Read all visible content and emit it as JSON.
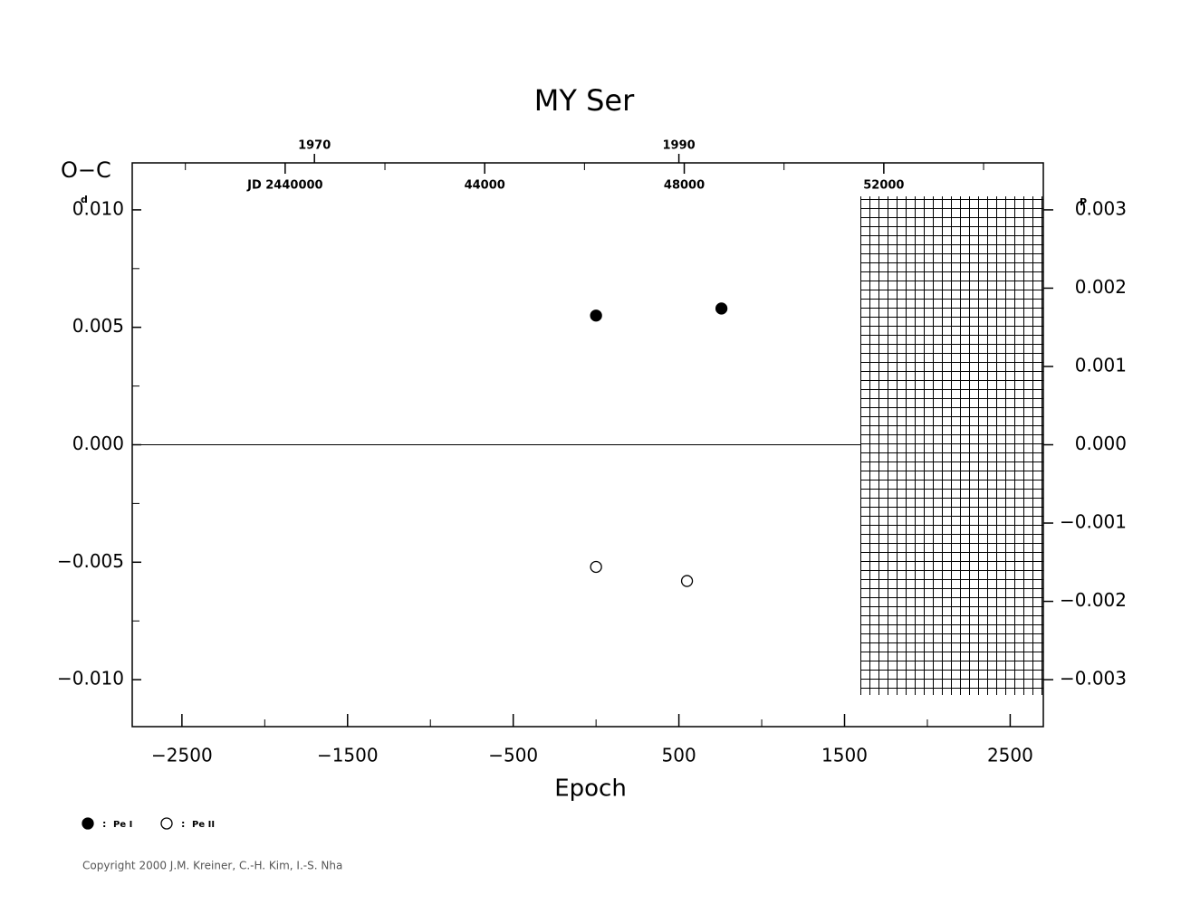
{
  "chart_data": {
    "type": "scatter",
    "title": "MY Ser",
    "y_label": "O−C",
    "y_unit": "d",
    "y2_unit": "P",
    "x_label": "Epoch",
    "xlim": [
      -2800,
      2700
    ],
    "xticks": [
      {
        "value": -2500,
        "label": "−2500"
      },
      {
        "value": -1500,
        "label": "−1500"
      },
      {
        "value": -500,
        "label": "−500"
      },
      500,
      1500,
      2500
    ],
    "ylim": [
      -0.012,
      0.012
    ],
    "yticks": [
      {
        "value": 0.01,
        "label": "0.010"
      },
      {
        "value": 0.005,
        "label": "0.005"
      },
      {
        "value": 0,
        "label": "0.000"
      },
      {
        "value": -0.005,
        "label": "−0.005"
      },
      {
        "value": -0.01,
        "label": "−0.010"
      }
    ],
    "y2lim": [
      -0.0036,
      0.0036
    ],
    "y2ticks": [
      {
        "value": 0.003,
        "label": "0.003"
      },
      {
        "value": 0.002,
        "label": "0.002"
      },
      {
        "value": 0.001,
        "label": "0.001"
      },
      {
        "value": 0,
        "label": "0.000"
      },
      {
        "value": -0.001,
        "label": "−0.001"
      },
      {
        "value": -0.002,
        "label": "−0.002"
      },
      {
        "value": -0.003,
        "label": "−0.003"
      }
    ],
    "jdlim": [
      2436934.5,
      2455197.5
    ],
    "jdticks": [
      {
        "value": 2440000,
        "label": "JD  2440000"
      },
      {
        "value": 2444000,
        "label": "44000"
      },
      {
        "value": 2448000,
        "label": "48000"
      },
      {
        "value": 2452000,
        "label": "52000"
      }
    ],
    "yearlim": [
      1960,
      2010
    ],
    "yearticks": [
      1970,
      1990
    ],
    "zero_line": true,
    "series": [
      {
        "name": "Pe I",
        "color": "#000000",
        "filled": true,
        "x": [
          0,
          757
        ],
        "values": [
          0.0055,
          0.0058
        ]
      },
      {
        "name": "Pe II",
        "color": "#000000",
        "filled": false,
        "x": [
          0,
          549
        ],
        "values": [
          -0.0052,
          -0.0058
        ]
      }
    ],
    "legend_separator": ":",
    "copyright": "Copyright 2000 J.M. Kreiner, C.-H. Kim, I.-S. Nha"
  }
}
